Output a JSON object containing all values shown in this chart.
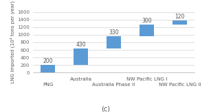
{
  "categories": [
    "PNG",
    "Australia",
    "Australia Phase II",
    "NW Pacific LNG I",
    "NW Pacific LNG II"
  ],
  "increments": [
    200,
    430,
    330,
    300,
    120
  ],
  "bar_color": "#5b9bd5",
  "ylabel": "LNG imported (10⁴ tons per year)",
  "ylim": [
    0,
    1600
  ],
  "yticks": [
    0,
    200,
    400,
    600,
    800,
    1000,
    1200,
    1400,
    1600
  ],
  "subtitle": "(c)",
  "ylabel_fontsize": 5.2,
  "tick_fontsize": 5.0,
  "value_fontsize": 5.5,
  "subtitle_fontsize": 7,
  "xlabel_fontsize": 5.2,
  "bar_width": 0.45
}
